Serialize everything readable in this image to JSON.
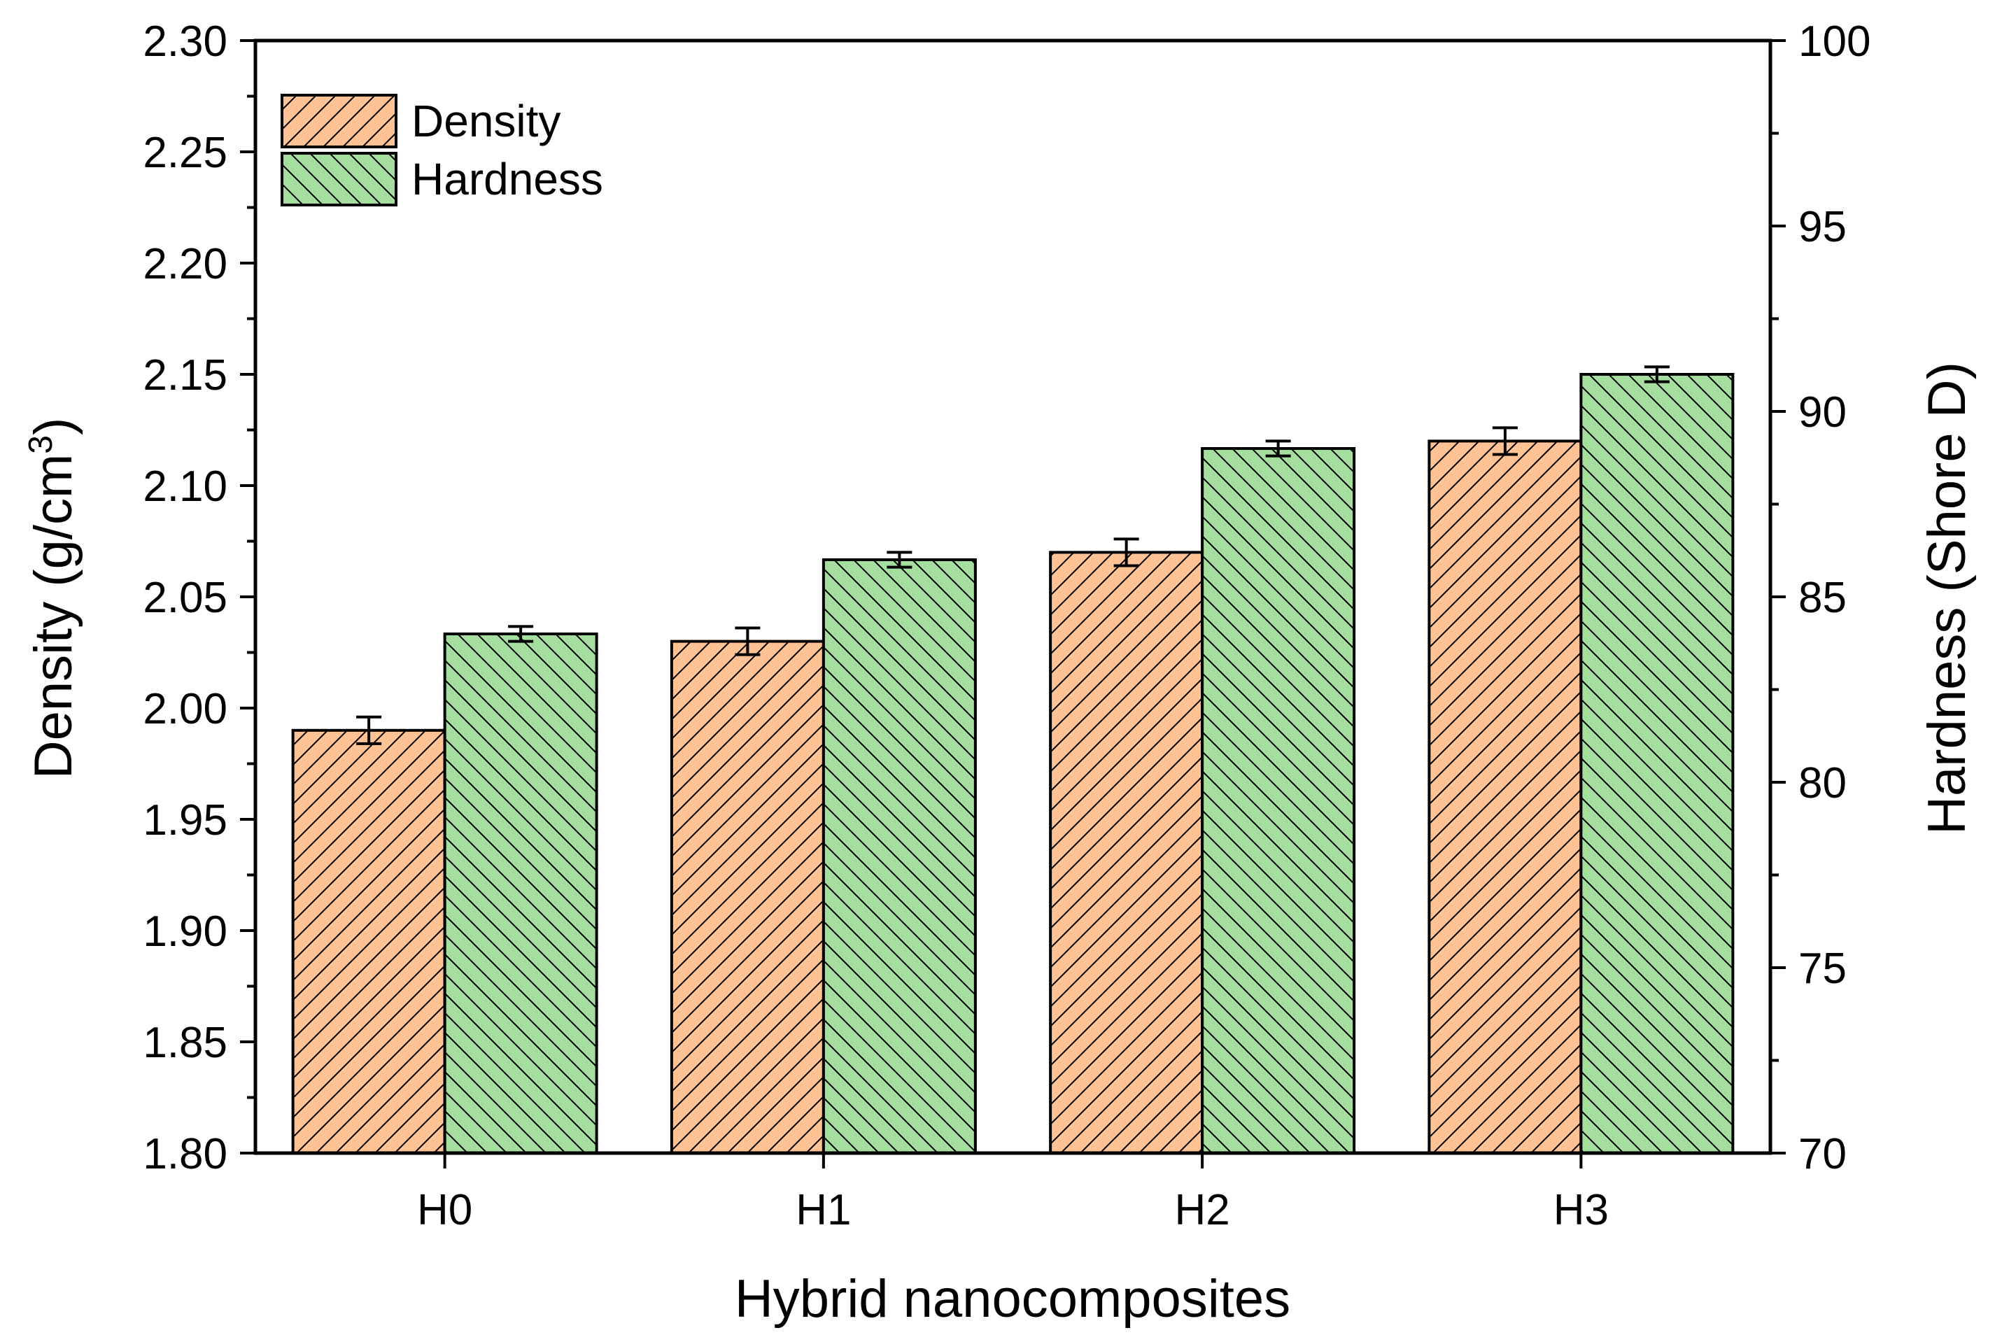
{
  "chart_data": {
    "type": "bar",
    "categories": [
      "H0",
      "H1",
      "H2",
      "H3"
    ],
    "series": [
      {
        "name": "Density",
        "axis": "left",
        "values": [
          1.99,
          2.03,
          2.07,
          2.12
        ],
        "errors": [
          0.006,
          0.006,
          0.006,
          0.006
        ],
        "color": "#FFC295",
        "hatch": "forward"
      },
      {
        "name": "Hardness",
        "axis": "right",
        "values": [
          84.0,
          86.0,
          89.0,
          91.0
        ],
        "errors": [
          0.2,
          0.2,
          0.2,
          0.2
        ],
        "color": "#A5DE9E",
        "hatch": "backward"
      }
    ],
    "xlabel": "Hybrid nanocomposites",
    "ylabel": "Density (g/cm",
    "ylabel_sup": "3",
    "ylabel_close": ")",
    "y2label": "Hardness (Shore D)",
    "ylim": [
      1.8,
      2.3
    ],
    "y2lim": [
      70,
      100
    ],
    "yticks": [
      "1.80",
      "1.85",
      "1.90",
      "1.95",
      "2.00",
      "2.05",
      "2.10",
      "2.15",
      "2.20",
      "2.25",
      "2.30"
    ],
    "y2ticks": [
      "70",
      "75",
      "80",
      "85",
      "90",
      "95",
      "100"
    ],
    "legend_position": "top-left"
  }
}
